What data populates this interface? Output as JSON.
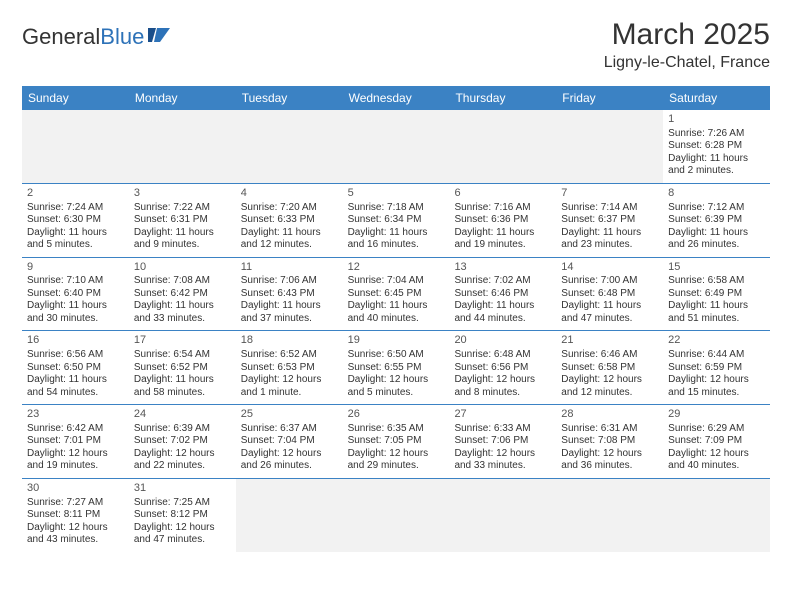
{
  "brand": {
    "part1": "General",
    "part2": "Blue"
  },
  "header": {
    "month_title": "March 2025",
    "location": "Ligny-le-Chatel, France"
  },
  "colors": {
    "header_bar": "#3b82c4",
    "divider": "#3b82c4",
    "empty_bg": "#f2f2f2",
    "text": "#333333"
  },
  "weekdays": [
    "Sunday",
    "Monday",
    "Tuesday",
    "Wednesday",
    "Thursday",
    "Friday",
    "Saturday"
  ],
  "weeks": [
    [
      {
        "empty": true
      },
      {
        "empty": true
      },
      {
        "empty": true
      },
      {
        "empty": true
      },
      {
        "empty": true
      },
      {
        "empty": true
      },
      {
        "num": "1",
        "sunrise": "Sunrise: 7:26 AM",
        "sunset": "Sunset: 6:28 PM",
        "daylight": "Daylight: 11 hours and 2 minutes."
      }
    ],
    [
      {
        "num": "2",
        "sunrise": "Sunrise: 7:24 AM",
        "sunset": "Sunset: 6:30 PM",
        "daylight": "Daylight: 11 hours and 5 minutes."
      },
      {
        "num": "3",
        "sunrise": "Sunrise: 7:22 AM",
        "sunset": "Sunset: 6:31 PM",
        "daylight": "Daylight: 11 hours and 9 minutes."
      },
      {
        "num": "4",
        "sunrise": "Sunrise: 7:20 AM",
        "sunset": "Sunset: 6:33 PM",
        "daylight": "Daylight: 11 hours and 12 minutes."
      },
      {
        "num": "5",
        "sunrise": "Sunrise: 7:18 AM",
        "sunset": "Sunset: 6:34 PM",
        "daylight": "Daylight: 11 hours and 16 minutes."
      },
      {
        "num": "6",
        "sunrise": "Sunrise: 7:16 AM",
        "sunset": "Sunset: 6:36 PM",
        "daylight": "Daylight: 11 hours and 19 minutes."
      },
      {
        "num": "7",
        "sunrise": "Sunrise: 7:14 AM",
        "sunset": "Sunset: 6:37 PM",
        "daylight": "Daylight: 11 hours and 23 minutes."
      },
      {
        "num": "8",
        "sunrise": "Sunrise: 7:12 AM",
        "sunset": "Sunset: 6:39 PM",
        "daylight": "Daylight: 11 hours and 26 minutes."
      }
    ],
    [
      {
        "num": "9",
        "sunrise": "Sunrise: 7:10 AM",
        "sunset": "Sunset: 6:40 PM",
        "daylight": "Daylight: 11 hours and 30 minutes."
      },
      {
        "num": "10",
        "sunrise": "Sunrise: 7:08 AM",
        "sunset": "Sunset: 6:42 PM",
        "daylight": "Daylight: 11 hours and 33 minutes."
      },
      {
        "num": "11",
        "sunrise": "Sunrise: 7:06 AM",
        "sunset": "Sunset: 6:43 PM",
        "daylight": "Daylight: 11 hours and 37 minutes."
      },
      {
        "num": "12",
        "sunrise": "Sunrise: 7:04 AM",
        "sunset": "Sunset: 6:45 PM",
        "daylight": "Daylight: 11 hours and 40 minutes."
      },
      {
        "num": "13",
        "sunrise": "Sunrise: 7:02 AM",
        "sunset": "Sunset: 6:46 PM",
        "daylight": "Daylight: 11 hours and 44 minutes."
      },
      {
        "num": "14",
        "sunrise": "Sunrise: 7:00 AM",
        "sunset": "Sunset: 6:48 PM",
        "daylight": "Daylight: 11 hours and 47 minutes."
      },
      {
        "num": "15",
        "sunrise": "Sunrise: 6:58 AM",
        "sunset": "Sunset: 6:49 PM",
        "daylight": "Daylight: 11 hours and 51 minutes."
      }
    ],
    [
      {
        "num": "16",
        "sunrise": "Sunrise: 6:56 AM",
        "sunset": "Sunset: 6:50 PM",
        "daylight": "Daylight: 11 hours and 54 minutes."
      },
      {
        "num": "17",
        "sunrise": "Sunrise: 6:54 AM",
        "sunset": "Sunset: 6:52 PM",
        "daylight": "Daylight: 11 hours and 58 minutes."
      },
      {
        "num": "18",
        "sunrise": "Sunrise: 6:52 AM",
        "sunset": "Sunset: 6:53 PM",
        "daylight": "Daylight: 12 hours and 1 minute."
      },
      {
        "num": "19",
        "sunrise": "Sunrise: 6:50 AM",
        "sunset": "Sunset: 6:55 PM",
        "daylight": "Daylight: 12 hours and 5 minutes."
      },
      {
        "num": "20",
        "sunrise": "Sunrise: 6:48 AM",
        "sunset": "Sunset: 6:56 PM",
        "daylight": "Daylight: 12 hours and 8 minutes."
      },
      {
        "num": "21",
        "sunrise": "Sunrise: 6:46 AM",
        "sunset": "Sunset: 6:58 PM",
        "daylight": "Daylight: 12 hours and 12 minutes."
      },
      {
        "num": "22",
        "sunrise": "Sunrise: 6:44 AM",
        "sunset": "Sunset: 6:59 PM",
        "daylight": "Daylight: 12 hours and 15 minutes."
      }
    ],
    [
      {
        "num": "23",
        "sunrise": "Sunrise: 6:42 AM",
        "sunset": "Sunset: 7:01 PM",
        "daylight": "Daylight: 12 hours and 19 minutes."
      },
      {
        "num": "24",
        "sunrise": "Sunrise: 6:39 AM",
        "sunset": "Sunset: 7:02 PM",
        "daylight": "Daylight: 12 hours and 22 minutes."
      },
      {
        "num": "25",
        "sunrise": "Sunrise: 6:37 AM",
        "sunset": "Sunset: 7:04 PM",
        "daylight": "Daylight: 12 hours and 26 minutes."
      },
      {
        "num": "26",
        "sunrise": "Sunrise: 6:35 AM",
        "sunset": "Sunset: 7:05 PM",
        "daylight": "Daylight: 12 hours and 29 minutes."
      },
      {
        "num": "27",
        "sunrise": "Sunrise: 6:33 AM",
        "sunset": "Sunset: 7:06 PM",
        "daylight": "Daylight: 12 hours and 33 minutes."
      },
      {
        "num": "28",
        "sunrise": "Sunrise: 6:31 AM",
        "sunset": "Sunset: 7:08 PM",
        "daylight": "Daylight: 12 hours and 36 minutes."
      },
      {
        "num": "29",
        "sunrise": "Sunrise: 6:29 AM",
        "sunset": "Sunset: 7:09 PM",
        "daylight": "Daylight: 12 hours and 40 minutes."
      }
    ],
    [
      {
        "num": "30",
        "sunrise": "Sunrise: 7:27 AM",
        "sunset": "Sunset: 8:11 PM",
        "daylight": "Daylight: 12 hours and 43 minutes."
      },
      {
        "num": "31",
        "sunrise": "Sunrise: 7:25 AM",
        "sunset": "Sunset: 8:12 PM",
        "daylight": "Daylight: 12 hours and 47 minutes."
      },
      {
        "empty": true
      },
      {
        "empty": true
      },
      {
        "empty": true
      },
      {
        "empty": true
      },
      {
        "empty": true
      }
    ]
  ]
}
